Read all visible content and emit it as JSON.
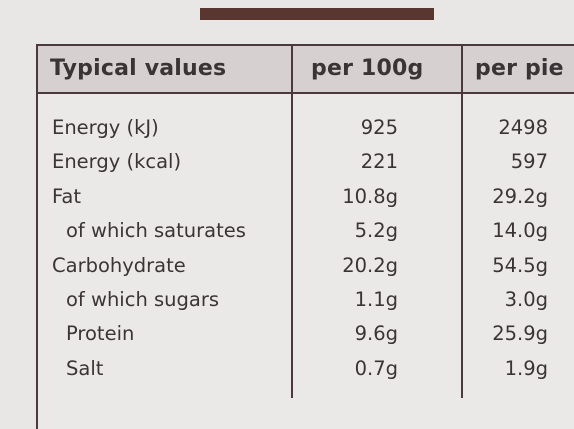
{
  "header": {
    "label": "Typical values",
    "per_100g": "per 100g",
    "per_pie": "per pie"
  },
  "rows": [
    {
      "label": "Energy (kJ)",
      "per_100g": "925",
      "per_pie": "2498"
    },
    {
      "label": "Energy (kcal)",
      "per_100g": "221",
      "per_pie": "597"
    },
    {
      "label": "Fat",
      "per_100g": "10.8g",
      "per_pie": "29.2g"
    },
    {
      "label": "of which saturates",
      "per_100g": "5.2g",
      "per_pie": "14.0g"
    },
    {
      "label": "Carbohydrate",
      "per_100g": "20.2g",
      "per_pie": "54.5g"
    },
    {
      "label": "of which sugars",
      "per_100g": "1.1g",
      "per_pie": "3.0g"
    },
    {
      "label": "Protein",
      "per_100g": "9.6g",
      "per_pie": "25.9g"
    },
    {
      "label": "Salt",
      "per_100g": "0.7g",
      "per_pie": "1.9g"
    }
  ]
}
